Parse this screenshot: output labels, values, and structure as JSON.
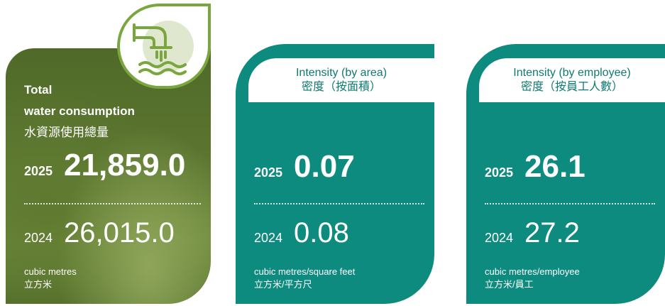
{
  "cards": [
    {
      "title": [
        "Total",
        "water consumption",
        "水資源使用總量"
      ],
      "year_current": "2025",
      "value_current": "21,859.0",
      "year_previous": "2024",
      "value_previous": "26,015.0",
      "unit": [
        "cubic metres",
        "立方米"
      ]
    },
    {
      "title": [
        "Intensity (by area)",
        "密度（按面積）"
      ],
      "year_current": "2025",
      "value_current": "0.07",
      "year_previous": "2024",
      "value_previous": "0.08",
      "unit": [
        "cubic metres/square feet",
        "立方米/平方尺"
      ]
    },
    {
      "title": [
        "Intensity (by employee)",
        "密度（按員工人數）"
      ],
      "year_current": "2025",
      "value_current": "26.1",
      "year_previous": "2024",
      "value_previous": "27.2",
      "unit": [
        "cubic metres/employee",
        "立方米/員工"
      ]
    }
  ]
}
